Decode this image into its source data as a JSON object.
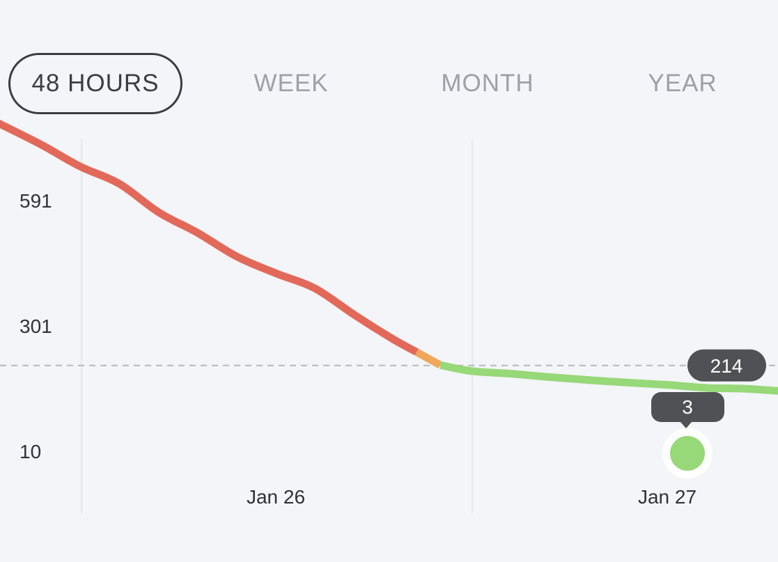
{
  "tabs": [
    {
      "label": "48 HOURS",
      "active": true
    },
    {
      "label": "WEEK",
      "active": false
    },
    {
      "label": "MONTH",
      "active": false
    },
    {
      "label": "YEAR",
      "active": false
    }
  ],
  "colors": {
    "background": "#f3f5f8",
    "high": "#e2695a",
    "medium": "#f0a75a",
    "low": "#97d878",
    "badge": "#505154",
    "gridline": "#e6e8ec",
    "threshold_line": "#b5b7bc"
  },
  "chart_data": {
    "type": "line",
    "y_ticks": [
      "591",
      "301",
      "10"
    ],
    "x_ticks": [
      "Jan 26",
      "Jan 27"
    ],
    "threshold": {
      "value": 214,
      "label": "214"
    },
    "current": {
      "value": 3,
      "label": "3"
    },
    "series": [
      {
        "segments": [
          {
            "level": "high",
            "points": [
              [
                -0.71,
                777
              ],
              [
                -0.6,
                727
              ],
              [
                -0.5,
                676
              ],
              [
                -0.4,
                636
              ],
              [
                -0.3,
                570
              ],
              [
                -0.2,
                522
              ],
              [
                -0.1,
                467
              ],
              [
                0.0,
                428
              ],
              [
                0.1,
                393
              ],
              [
                0.2,
                332
              ],
              [
                0.3,
                275
              ],
              [
                0.36,
                245
              ]
            ]
          },
          {
            "level": "medium",
            "points": [
              [
                0.36,
                245
              ],
              [
                0.42,
                215
              ]
            ]
          },
          {
            "level": "low",
            "points": [
              [
                0.42,
                215
              ],
              [
                0.5,
                201
              ],
              [
                0.6,
                195
              ],
              [
                0.7,
                187
              ],
              [
                0.85,
                177
              ],
              [
                1.0,
                169
              ],
              [
                1.1,
                162
              ],
              [
                1.2,
                160
              ],
              [
                1.3,
                154
              ],
              [
                1.4,
                149
              ],
              [
                1.55,
                148
              ],
              [
                1.7,
                148
              ],
              [
                1.85,
                150
              ]
            ]
          }
        ]
      }
    ]
  }
}
